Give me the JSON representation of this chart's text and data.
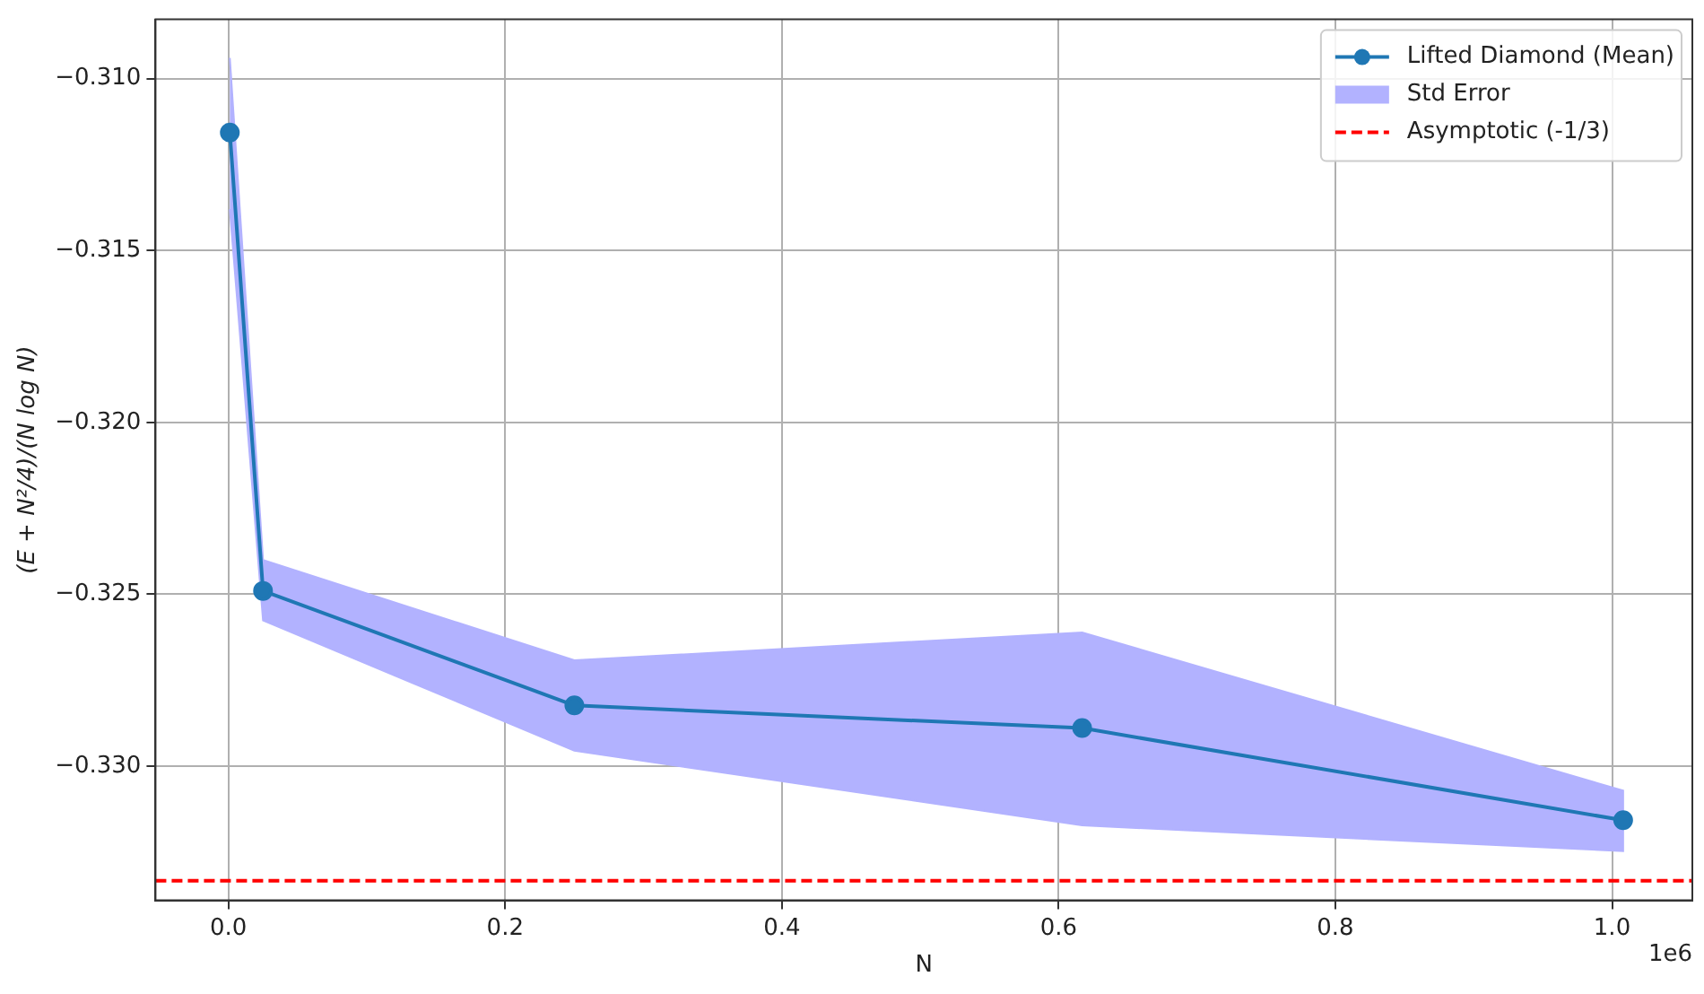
{
  "chart_data": {
    "type": "line",
    "xlabel": "N",
    "ylabel": "(E + N²/4)/(N log N)",
    "xlim": [
      -0.0527,
      1.058
    ],
    "ylim": [
      -0.3339,
      -0.30828
    ],
    "xticks": [
      {
        "value": 0,
        "label": "0.0"
      },
      0.2,
      0.4,
      0.6,
      0.8,
      {
        "value": 1,
        "label": "1.0"
      }
    ],
    "yticks": [
      {
        "value": -0.31,
        "label": "−0.310"
      },
      {
        "value": -0.315,
        "label": "−0.315"
      },
      {
        "value": -0.32,
        "label": "−0.320"
      },
      {
        "value": -0.325,
        "label": "−0.325"
      },
      {
        "value": -0.33,
        "label": "−0.330"
      }
    ],
    "series": [
      {
        "name": "Lifted Diamond (Mean)",
        "color": "#1f77b4",
        "marker": "circle",
        "x": [
          0.001,
          0.025,
          0.25,
          0.617,
          1.008
        ],
        "values": [
          -0.31157,
          -0.3249,
          -0.32823,
          -0.32889,
          -0.33157
        ]
      },
      {
        "name": "Std Error",
        "type": "area",
        "color": "#b2b2ff",
        "marker": "none",
        "x": [
          0.001,
          0.025,
          0.25,
          0.617,
          1.008,
          1.008,
          0.617,
          0.25,
          0.025,
          0.001
        ],
        "values": [
          -0.3094,
          -0.324,
          -0.32692,
          -0.32611,
          -0.33071,
          -0.33247,
          -0.33172,
          -0.32955,
          -0.32576,
          -0.3138
        ]
      }
    ],
    "ref_lines": [
      {
        "axis": "y",
        "value": -0.33333,
        "label": "Asymptotic (-1/3)",
        "color": "#ff0000",
        "line_style": "dashed"
      }
    ],
    "annotations": [
      "1e6"
    ],
    "grid": true,
    "legend": "top right",
    "line_style": "solid"
  }
}
